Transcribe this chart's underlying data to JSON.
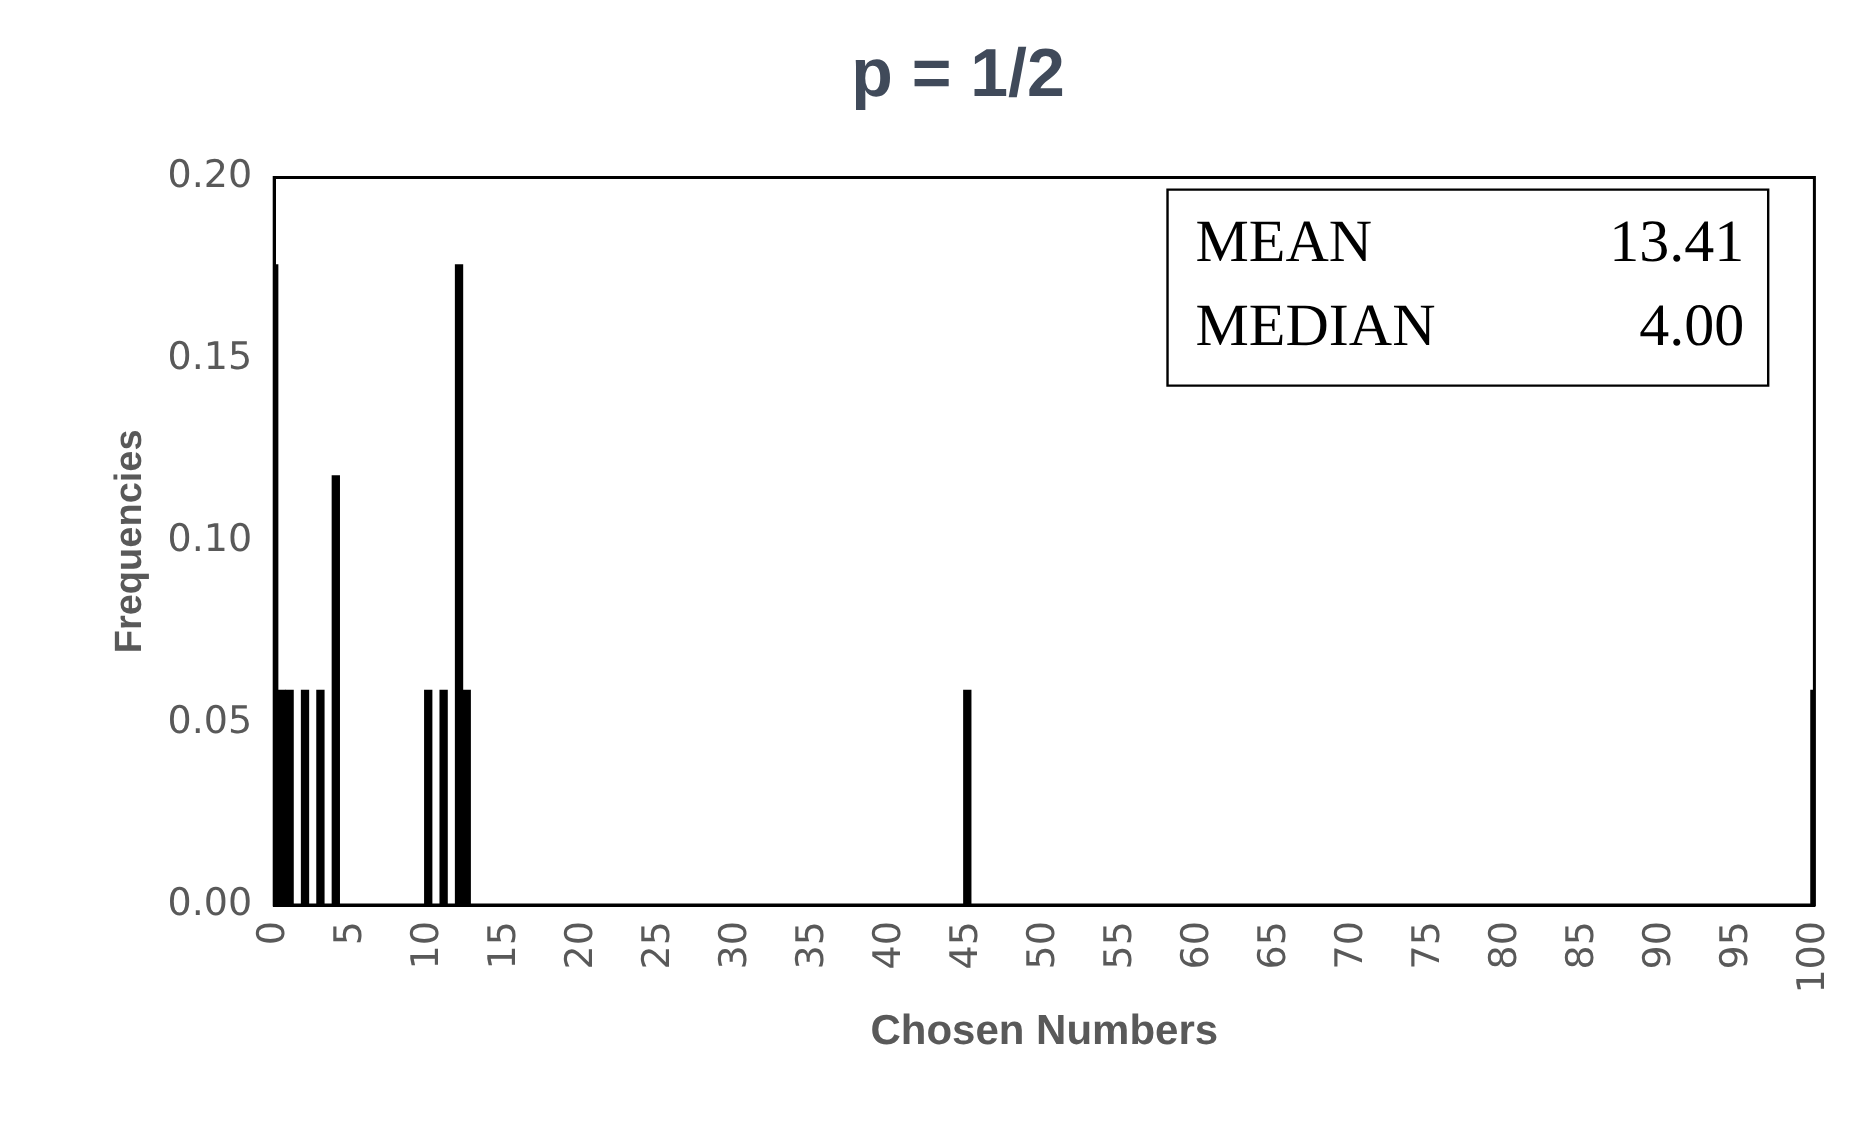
{
  "chart_data": {
    "type": "bar",
    "title": "p = 1/2",
    "xlabel": "Chosen Numbers",
    "ylabel": "Frequencies",
    "x": [
      0,
      0.5,
      1,
      2,
      3,
      4,
      10,
      11,
      12,
      12.5,
      45,
      100
    ],
    "values": [
      0.176,
      0.059,
      0.059,
      0.059,
      0.059,
      0.118,
      0.059,
      0.059,
      0.176,
      0.059,
      0.059,
      0.059
    ],
    "color": "#000000",
    "xlim": [
      0,
      100
    ],
    "xticks": [
      0,
      5,
      10,
      15,
      20,
      25,
      30,
      35,
      40,
      45,
      50,
      55,
      60,
      65,
      70,
      75,
      80,
      85,
      90,
      95,
      100
    ],
    "ylim": [
      0,
      0.2
    ],
    "yticks": [
      {
        "value": 0,
        "label": "0.00"
      },
      {
        "value": 0.05,
        "label": "0.05"
      },
      {
        "value": 0.1,
        "label": "0.10"
      },
      {
        "value": 0.15,
        "label": "0.15"
      },
      {
        "value": 0.2,
        "label": "0.20"
      }
    ],
    "grid": false,
    "legend": false,
    "annotations": [
      "MEAN",
      "13.41",
      "MEDIAN",
      "4.00"
    ]
  }
}
